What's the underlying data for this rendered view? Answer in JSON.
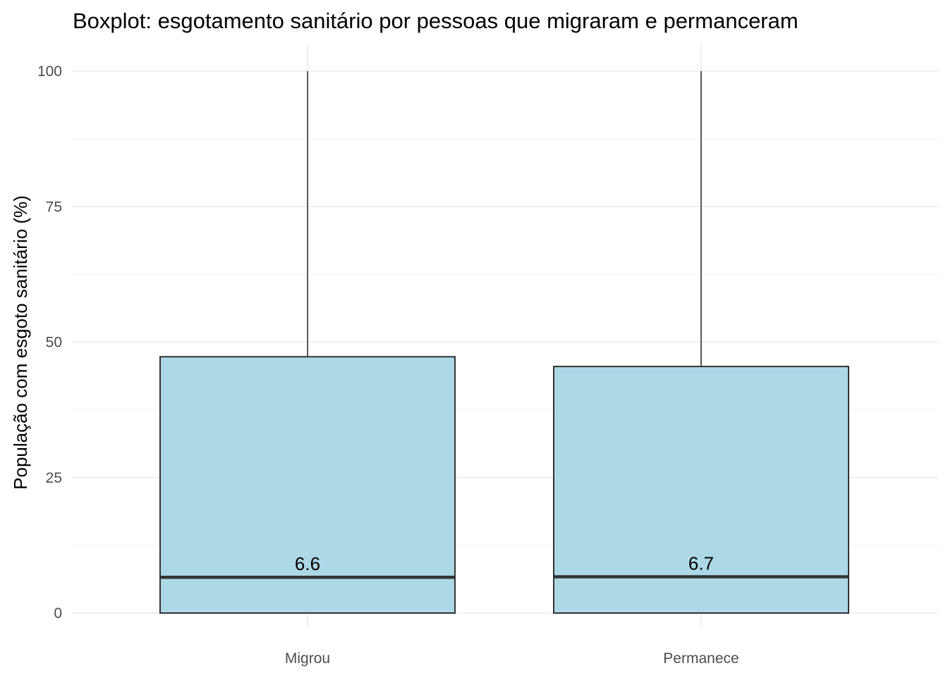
{
  "chart_data": {
    "type": "boxplot",
    "title": "Boxplot: esgotamento sanitário por pessoas que migraram e permanceram",
    "xlabel": "",
    "ylabel": "População com esgoto sanitário (%)",
    "ylim": [
      0,
      100
    ],
    "y_ticks": [
      0,
      25,
      50,
      75,
      100
    ],
    "grid": true,
    "categories": [
      "Migrou",
      "Permanece"
    ],
    "boxes": [
      {
        "category": "Migrou",
        "min": 0,
        "q1": 0,
        "median": 6.6,
        "q3": 47.3,
        "max": 100,
        "median_label": "6.6"
      },
      {
        "category": "Permanece",
        "min": 0,
        "q1": 0,
        "median": 6.7,
        "q3": 45.5,
        "max": 100,
        "median_label": "6.7"
      }
    ],
    "colors": {
      "box_fill": "#ADD8E6",
      "box_stroke": "#333333",
      "whisker": "#333333",
      "median_line": "#333333",
      "grid_major": "#ebebeb",
      "grid_minor": "#f2f2f2"
    }
  }
}
